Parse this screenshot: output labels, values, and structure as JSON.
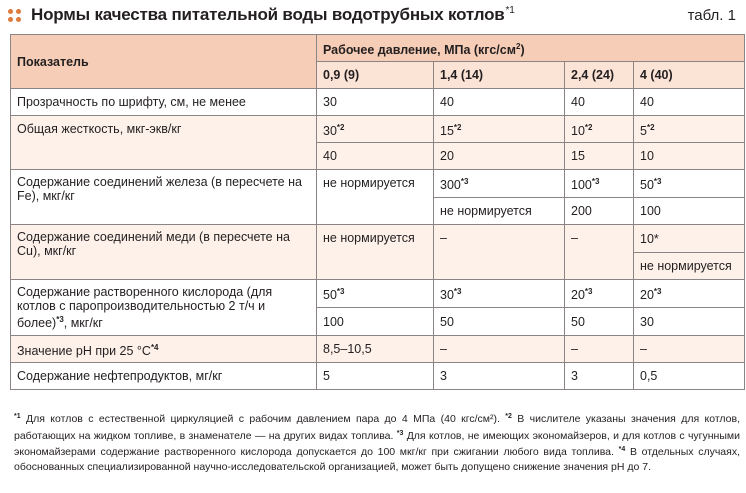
{
  "header": {
    "title": "Нормы качества питательной воды водотрубных котлов",
    "title_note": "*1",
    "table_label": "табл. 1"
  },
  "table": {
    "col_indicator": "Показатель",
    "col_pressure": "Рабочее давление, МПа (кгс/см",
    "col_pressure_sup": "2",
    "col_pressure_end": ")",
    "pressures": [
      "0,9 (9)",
      "1,4 (14)",
      "2,4 (24)",
      "4 (40)"
    ],
    "rows": {
      "transparency": {
        "label": "Прозрачность по шрифту, см, не менее",
        "v": [
          "30",
          "40",
          "40",
          "40"
        ]
      },
      "hardness": {
        "label": "Общая жесткость, мкг-экв/кг",
        "top": [
          "30",
          "15",
          "10",
          "5"
        ],
        "top_note": "*2",
        "bottom": [
          "40",
          "20",
          "15",
          "10"
        ]
      },
      "iron": {
        "label": "Содержание соединений железа (в пересчете на Fe), мкг/кг",
        "c1": "не нормируется",
        "top": [
          "300",
          "100",
          "50"
        ],
        "top_note": "*3",
        "bottom": [
          "не нормируется",
          "200",
          "100"
        ]
      },
      "copper": {
        "label": "Содержание соединений меди (в пересчете на Cu), мкг/кг",
        "c1": "не нормируется",
        "c2": "–",
        "c3": "–",
        "c4_top": "10*",
        "c4_bottom": "не нормируется"
      },
      "oxygen": {
        "label": "Содержание растворенного кислорода (для котлов с паропроизводительностью 2 т/ч и более)",
        "label_note": "*3",
        "label_end": ", мкг/кг",
        "top": [
          "50",
          "30",
          "20",
          "20"
        ],
        "top_note": "*3",
        "bottom": [
          "100",
          "50",
          "50",
          "30"
        ]
      },
      "ph": {
        "label": "Значение pH при 25 °C",
        "label_note": "*4",
        "v": [
          "8,5–10,5",
          "–",
          "–",
          "–"
        ]
      },
      "oil": {
        "label": "Содержание нефтепродуктов, мг/кг",
        "v": [
          "5",
          "3",
          "3",
          "0,5"
        ]
      }
    }
  },
  "footnotes": {
    "n1": "*1",
    "t1": " Для котлов с естественной циркуляцией с рабочим давлением пара до 4 МПа (40 кгс/см²). ",
    "n2": "*2",
    "t2": " В числителе указаны значения для котлов, работающих на жидком топливе, в знаменателе — на других видах топлива. ",
    "n3": "*3",
    "t3": " Для котлов, не имеющих экономайзеров, и для котлов с чугунными экономайзерами содержание растворенного кислорода допускается до 100 мкг/кг при сжигании любого вида топлива. ",
    "n4": "*4",
    "t4": " В отдельных случаях, обоснованных специализированной научно-исследовательской организацией, может быть допущено снижение значения pH до 7."
  },
  "colors": {
    "accent": "#e07a3c",
    "header_bg": "#f6cdb6",
    "subheader_bg": "#fbe3d6",
    "row_tint": "#fdf1ea",
    "grid": "#8a8584"
  }
}
